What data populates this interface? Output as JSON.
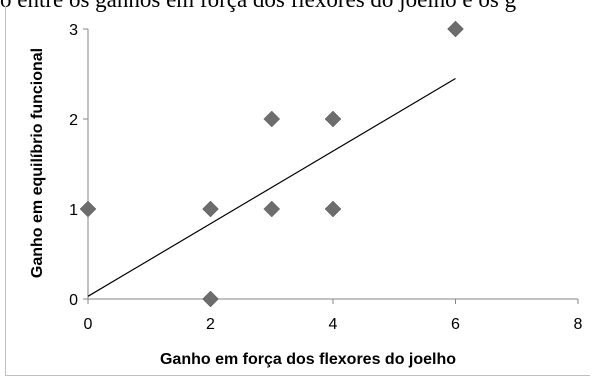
{
  "caption_fragment": "o entre os ganhos em força dos flexores do joelho e os g",
  "chart_data": {
    "type": "scatter",
    "title": "",
    "xlabel": "Ganho em força dos flexores do joelho",
    "ylabel": "Ganho em equilíbrio funcional",
    "xlim": [
      0,
      8
    ],
    "ylim": [
      0,
      3
    ],
    "xticks": [
      "0",
      "2",
      "4",
      "6",
      "8"
    ],
    "yticks": [
      "0",
      "1",
      "2",
      "3"
    ],
    "grid": false,
    "legend": "none",
    "points": [
      {
        "x": 0,
        "y": 1
      },
      {
        "x": 2,
        "y": 0
      },
      {
        "x": 2,
        "y": 1
      },
      {
        "x": 3,
        "y": 1
      },
      {
        "x": 3,
        "y": 2
      },
      {
        "x": 4,
        "y": 1
      },
      {
        "x": 4,
        "y": 2
      },
      {
        "x": 6,
        "y": 3
      }
    ],
    "trendline": {
      "x": [
        0,
        6
      ],
      "y": [
        0.03,
        2.45
      ]
    },
    "marker_color": "#6d6d6d",
    "axis_color": "#868686"
  }
}
